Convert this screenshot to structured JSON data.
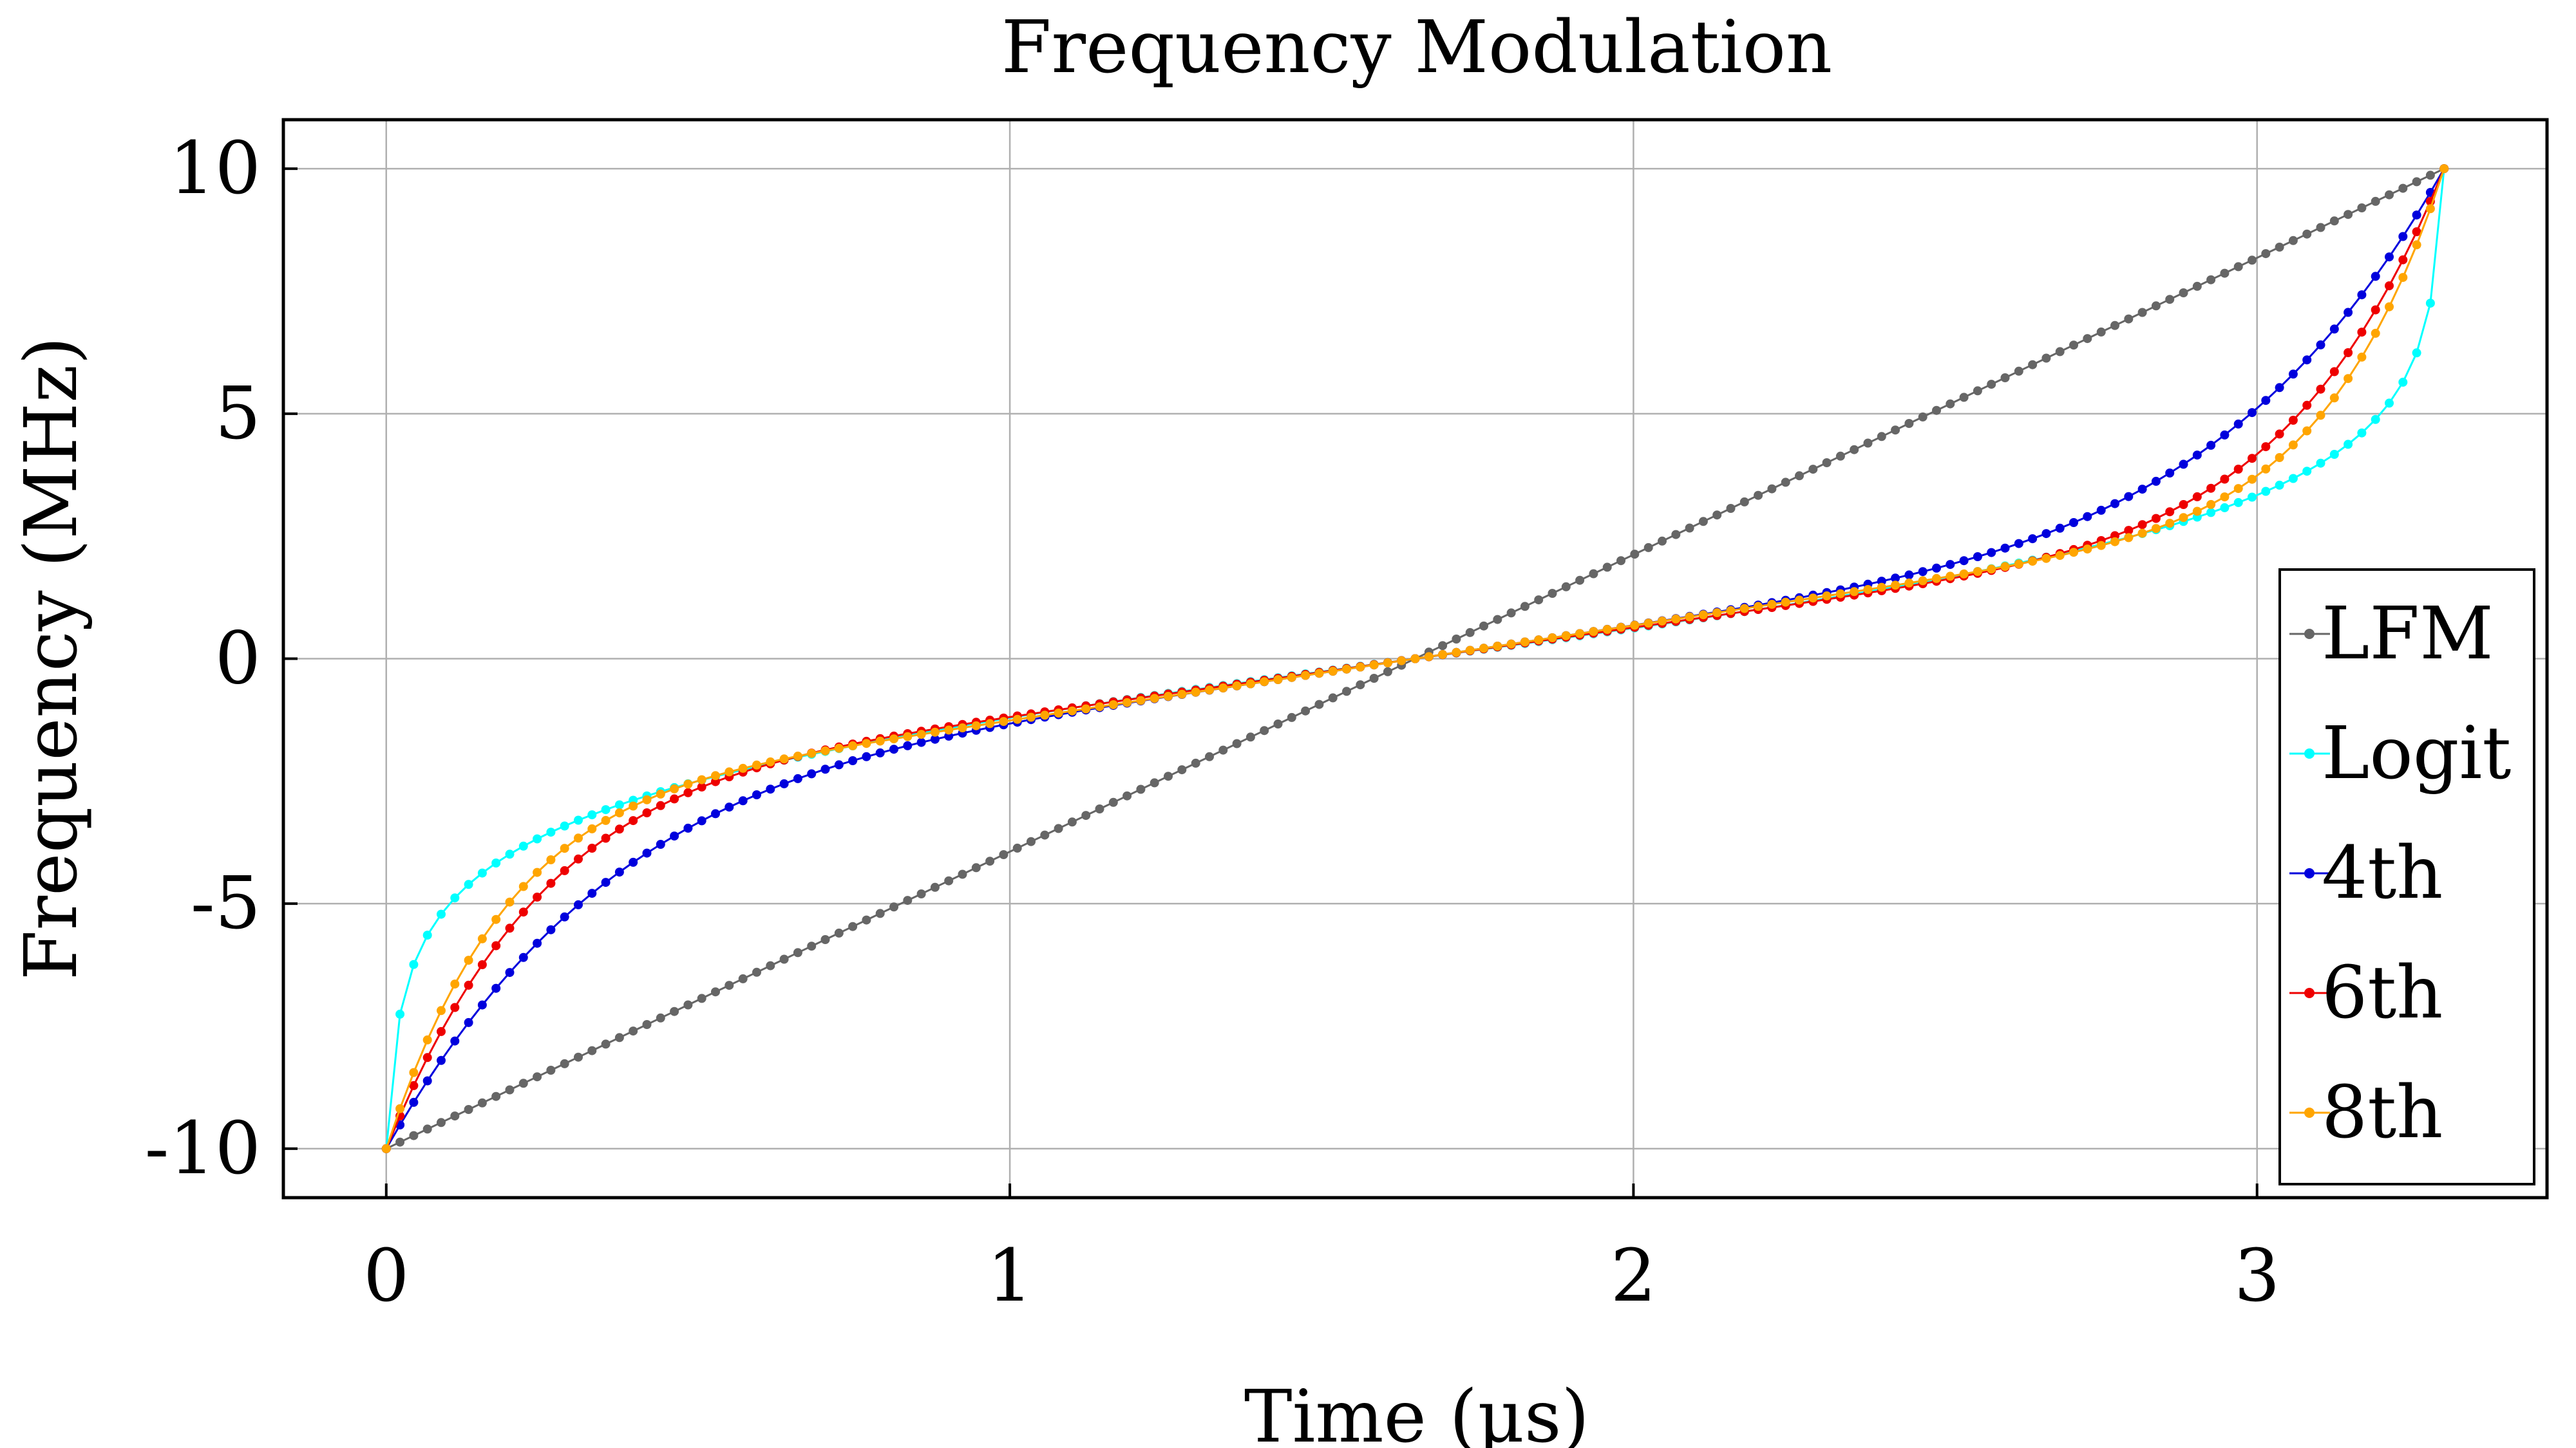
{
  "chart_data": {
    "type": "line",
    "title": "Frequency Modulation",
    "xlabel": "Time (µs)",
    "ylabel": "Frequency (MHz)",
    "xlim": [
      -0.165,
      3.465
    ],
    "ylim": [
      -11.0,
      11.0
    ],
    "xticks": [
      0,
      1,
      2,
      3
    ],
    "xtick_labels": [
      "0",
      "1",
      "2",
      "3"
    ],
    "yticks": [
      -10,
      -5,
      0,
      5,
      10
    ],
    "ytick_labels": [
      "-10",
      "-5",
      "0",
      "5",
      "10"
    ],
    "grid": true,
    "legend_position": "lower-right",
    "duration": 3.3,
    "series": [
      {
        "name": "LFM",
        "color": "#666666",
        "shape": "linear"
      },
      {
        "name": "Logit",
        "color": "#00ffff",
        "shape": "logit"
      },
      {
        "name": "4th",
        "color": "#0000dd",
        "shape": "4th"
      },
      {
        "name": "6th",
        "color": "#ee0000",
        "shape": "6th"
      },
      {
        "name": "8th",
        "color": "#ffa500",
        "shape": "8th"
      }
    ]
  }
}
